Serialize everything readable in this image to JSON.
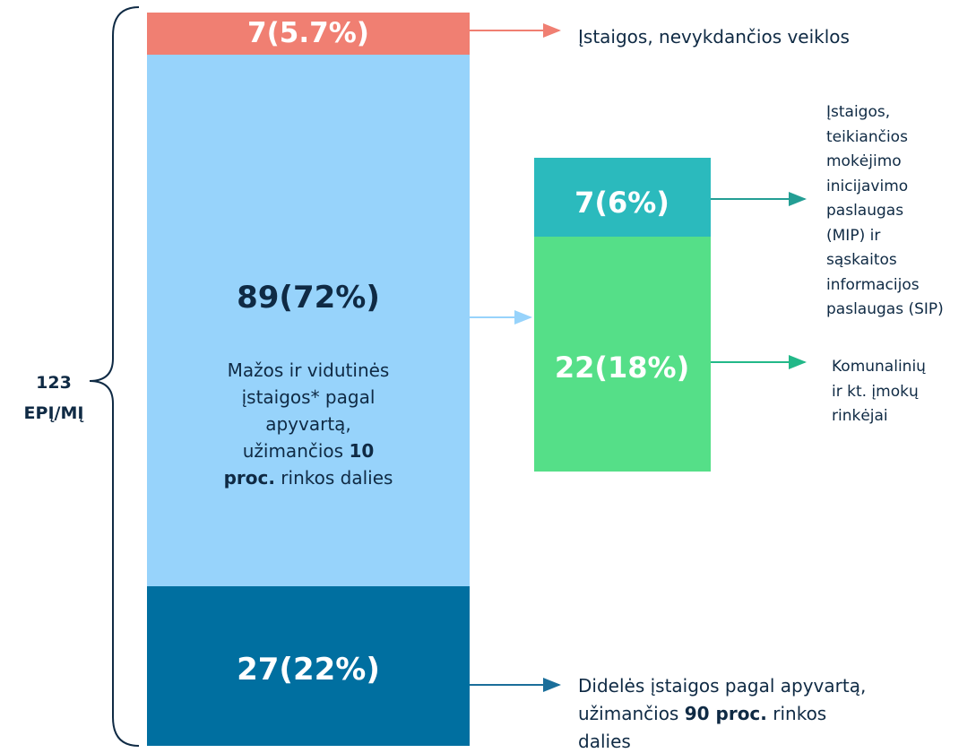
{
  "total": {
    "lines": [
      "123",
      "EPĮ/MĮ"
    ]
  },
  "left_bar": [
    {
      "label": "7(5.7%)",
      "color": "#f07f72",
      "label_color": "#ffffff",
      "description": [
        [
          {
            "text": "Įstaigos, nevykdančios veiklos",
            "bold": false
          }
        ]
      ]
    },
    {
      "label": "89(72%)",
      "color": "#97d3fb",
      "label_color": "#0f2a44",
      "description": [
        [
          {
            "text": "Mažos ir vidutinės",
            "bold": false
          }
        ],
        [
          {
            "text": "įstaigos* pagal",
            "bold": false
          }
        ],
        [
          {
            "text": "apyvartą,",
            "bold": false
          }
        ],
        [
          {
            "text": "užimančios ",
            "bold": false
          },
          {
            "text": "10",
            "bold": true
          }
        ],
        [
          {
            "text": "proc.",
            "bold": true
          },
          {
            "text": " rinkos dalies",
            "bold": false
          }
        ]
      ]
    },
    {
      "label": "27(22%)",
      "color": "#006fa0",
      "label_color": "#ffffff",
      "description": [
        [
          {
            "text": "Didelės įstaigos pagal apyvartą,",
            "bold": false
          }
        ],
        [
          {
            "text": "užimančios ",
            "bold": false
          },
          {
            "text": "90 proc.",
            "bold": true
          },
          {
            "text": " rinkos",
            "bold": false
          }
        ],
        [
          {
            "text": "dalies",
            "bold": false
          }
        ]
      ]
    }
  ],
  "right_bar": [
    {
      "label": "7(6%)",
      "color": "#2bbabd",
      "label_color": "#ffffff",
      "description": [
        [
          {
            "text": "Įstaigos,",
            "bold": false
          }
        ],
        [
          {
            "text": "teikiančios",
            "bold": false
          }
        ],
        [
          {
            "text": "mokėjimo",
            "bold": false
          }
        ],
        [
          {
            "text": "inicijavimo",
            "bold": false
          }
        ],
        [
          {
            "text": "paslaugas",
            "bold": false
          }
        ],
        [
          {
            "text": "(MIP) ir",
            "bold": false
          }
        ],
        [
          {
            "text": "sąskaitos",
            "bold": false
          }
        ],
        [
          {
            "text": "informacijos",
            "bold": false
          }
        ],
        [
          {
            "text": "paslaugas (SIP)",
            "bold": false
          }
        ]
      ]
    },
    {
      "label": "22(18%)",
      "color": "#55df88",
      "label_color": "#ffffff",
      "description": [
        [
          {
            "text": "Komunalinių",
            "bold": false
          }
        ],
        [
          {
            "text": "ir kt. įmokų",
            "bold": false
          }
        ],
        [
          {
            "text": "rinkėjai",
            "bold": false
          }
        ]
      ]
    }
  ]
}
